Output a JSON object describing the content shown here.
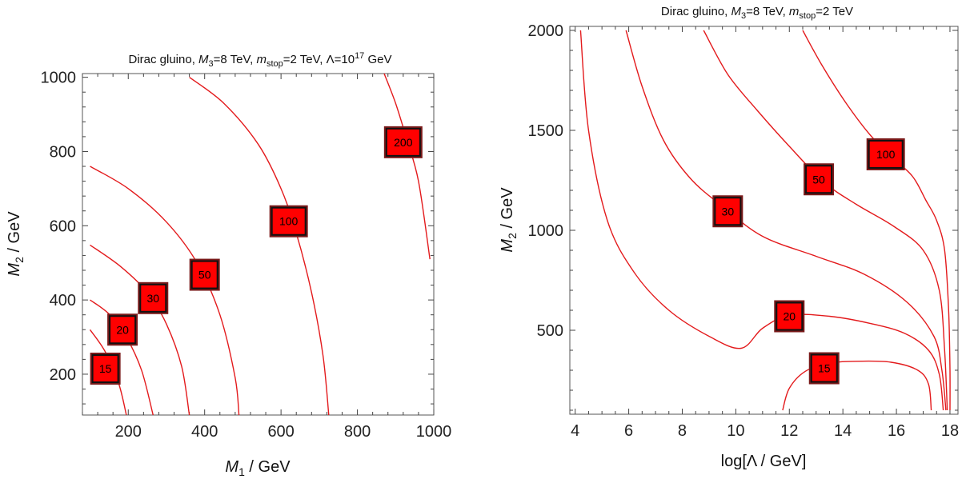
{
  "chart_data": [
    {
      "type": "contour",
      "title": {
        "prefix": "Dirac gluino, ",
        "m3_sym": "M",
        "m3_sub": "3",
        "m3_val": "=8 TeV, ",
        "mstop_sym": "m",
        "mstop_sub": "stop",
        "mstop_val": "=2 TeV, ",
        "lambda_pre": "Λ=10",
        "lambda_sup": "17",
        "lambda_post": " GeV"
      },
      "xlabel": {
        "sym": "M",
        "sub": "1",
        "unit": " / GeV"
      },
      "ylabel": {
        "sym": "M",
        "sub": "2",
        "unit": " / GeV"
      },
      "xlim": [
        80,
        1000
      ],
      "ylim": [
        90,
        1010
      ],
      "xticks": [
        200,
        400,
        600,
        800,
        1000
      ],
      "yticks": [
        200,
        400,
        600,
        800,
        1000
      ],
      "line_color": "#e31a1c",
      "label_fill": "#ff0000",
      "contours": [
        {
          "label": "15",
          "label_at": [
            140,
            215
          ],
          "points": [
            [
              100,
              320
            ],
            [
              140,
              260
            ],
            [
              175,
              175
            ],
            [
              195,
              90
            ]
          ]
        },
        {
          "label": "20",
          "label_at": [
            185,
            320
          ],
          "points": [
            [
              100,
              400
            ],
            [
              150,
              362
            ],
            [
              195,
              300
            ],
            [
              235,
              210
            ],
            [
              265,
              90
            ]
          ]
        },
        {
          "label": "30",
          "label_at": [
            265,
            405
          ],
          "points": [
            [
              100,
              548
            ],
            [
              180,
              490
            ],
            [
              250,
              420
            ],
            [
              300,
              335
            ],
            [
              340,
              220
            ],
            [
              360,
              90
            ]
          ]
        },
        {
          "label": "50",
          "label_at": [
            400,
            468
          ],
          "points": [
            [
              100,
              760
            ],
            [
              200,
              700
            ],
            [
              300,
              610
            ],
            [
              380,
              500
            ],
            [
              440,
              360
            ],
            [
              480,
              190
            ],
            [
              490,
              90
            ]
          ]
        },
        {
          "label": "100",
          "label_at": [
            620,
            612
          ],
          "points": [
            [
              360,
              1000
            ],
            [
              450,
              930
            ],
            [
              540,
              820
            ],
            [
              600,
              700
            ],
            [
              640,
              580
            ],
            [
              680,
              420
            ],
            [
              710,
              250
            ],
            [
              725,
              90
            ]
          ]
        },
        {
          "label": "200",
          "label_at": [
            920,
            825
          ],
          "points": [
            [
              870,
              1010
            ],
            [
              900,
              930
            ],
            [
              930,
              830
            ],
            [
              960,
              720
            ],
            [
              990,
              510
            ]
          ]
        }
      ]
    },
    {
      "type": "contour",
      "title": {
        "prefix": "Dirac gluino, ",
        "m3_sym": "M",
        "m3_sub": "3",
        "m3_val": "=8 TeV, ",
        "mstop_sym": "m",
        "mstop_sub": "stop",
        "mstop_val": "=2 TeV"
      },
      "xlabel": {
        "text": "log[Λ / GeV]"
      },
      "ylabel": {
        "sym": "M",
        "sub": "2",
        "unit": " / GeV"
      },
      "xlim": [
        3.8,
        18.3
      ],
      "ylim": [
        80,
        2020
      ],
      "xticks": [
        4,
        6,
        8,
        10,
        12,
        14,
        16,
        18
      ],
      "yticks": [
        500,
        1000,
        1500,
        2000
      ],
      "line_color": "#e31a1c",
      "label_fill": "#ff0000",
      "contours": [
        {
          "label": "15",
          "label_at": [
            13.3,
            310
          ],
          "points": [
            [
              11.75,
              100
            ],
            [
              12.0,
              210
            ],
            [
              12.6,
              295
            ],
            [
              13.5,
              335
            ],
            [
              14.5,
              345
            ],
            [
              15.8,
              340
            ],
            [
              16.8,
              300
            ],
            [
              17.2,
              230
            ],
            [
              17.3,
              100
            ]
          ]
        },
        {
          "label": "20",
          "label_at": [
            12.0,
            570
          ],
          "points": [
            [
              4.2,
              2000
            ],
            [
              4.5,
              1500
            ],
            [
              5.2,
              1050
            ],
            [
              6.2,
              790
            ],
            [
              7.5,
              600
            ],
            [
              9.0,
              470
            ],
            [
              10.2,
              410
            ],
            [
              11.0,
              510
            ],
            [
              12.0,
              575
            ],
            [
              13.5,
              570
            ],
            [
              15.0,
              535
            ],
            [
              16.3,
              485
            ],
            [
              17.2,
              400
            ],
            [
              17.6,
              280
            ],
            [
              17.75,
              100
            ]
          ]
        },
        {
          "label": "30",
          "label_at": [
            9.7,
            1095
          ],
          "points": [
            [
              5.9,
              2000
            ],
            [
              6.5,
              1720
            ],
            [
              7.3,
              1450
            ],
            [
              8.3,
              1260
            ],
            [
              9.5,
              1120
            ],
            [
              11.0,
              970
            ],
            [
              13.0,
              870
            ],
            [
              14.8,
              780
            ],
            [
              16.4,
              640
            ],
            [
              17.4,
              470
            ],
            [
              17.7,
              300
            ],
            [
              17.85,
              100
            ]
          ]
        },
        {
          "label": "50",
          "label_at": [
            13.1,
            1255
          ],
          "points": [
            [
              8.8,
              2000
            ],
            [
              9.7,
              1780
            ],
            [
              10.8,
              1600
            ],
            [
              12.0,
              1420
            ],
            [
              13.3,
              1240
            ],
            [
              14.5,
              1130
            ],
            [
              15.9,
              1020
            ],
            [
              17.0,
              900
            ],
            [
              17.6,
              700
            ],
            [
              17.8,
              400
            ],
            [
              17.9,
              100
            ]
          ]
        },
        {
          "label": "100",
          "label_at": [
            15.6,
            1380
          ],
          "points": [
            [
              12.5,
              2000
            ],
            [
              13.2,
              1830
            ],
            [
              14.1,
              1640
            ],
            [
              15.0,
              1480
            ],
            [
              15.8,
              1370
            ],
            [
              16.6,
              1270
            ],
            [
              17.1,
              1150
            ],
            [
              17.5,
              1050
            ],
            [
              17.8,
              900
            ],
            [
              17.95,
              600
            ],
            [
              18.0,
              300
            ],
            [
              18.0,
              100
            ]
          ]
        }
      ]
    }
  ]
}
